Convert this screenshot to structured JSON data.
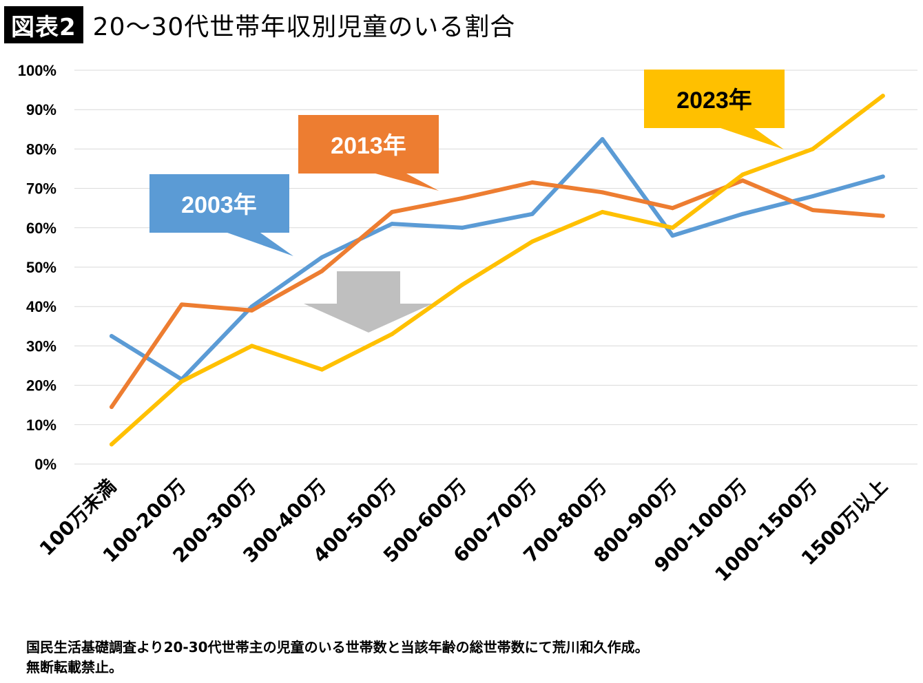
{
  "header": {
    "badge": "図表2",
    "title": "20〜30代世帯年収別児童のいる割合"
  },
  "footnote": {
    "line1": "国民生活基礎調査より20-30代世帯主の児童のいる世帯数と当該年齢の総世帯数にて荒川和久作成。",
    "line2": "無断転載禁止。"
  },
  "chart_data": {
    "type": "line",
    "title": "",
    "xlabel": "",
    "ylabel": "",
    "ylim": [
      0,
      100
    ],
    "yticks": [
      "0%",
      "10%",
      "20%",
      "30%",
      "40%",
      "50%",
      "60%",
      "70%",
      "80%",
      "90%",
      "100%"
    ],
    "grid": true,
    "categories": [
      "100万未満",
      "100-200万",
      "200-300万",
      "300-400万",
      "400-500万",
      "500-600万",
      "600-700万",
      "700-800万",
      "800-900万",
      "900-1000万",
      "1000-1500万",
      "1500万以上"
    ],
    "series": [
      {
        "name": "2003年",
        "color": "#5B9BD5",
        "values": [
          32.5,
          21.5,
          40,
          52.5,
          61,
          60,
          63.5,
          82.5,
          58,
          63.5,
          68,
          73
        ]
      },
      {
        "name": "2013年",
        "color": "#ED7D31",
        "values": [
          14.5,
          40.5,
          39,
          49,
          64,
          67.5,
          71.5,
          69,
          65,
          72,
          64.5,
          63
        ]
      },
      {
        "name": "2023年",
        "color": "#FFC000",
        "values": [
          5,
          21,
          30,
          24,
          33,
          45.5,
          56.5,
          64,
          60,
          73.5,
          80,
          93.5
        ]
      }
    ],
    "arrow": {
      "color": "#BFBFBF",
      "icon": "down-arrow-icon"
    }
  }
}
